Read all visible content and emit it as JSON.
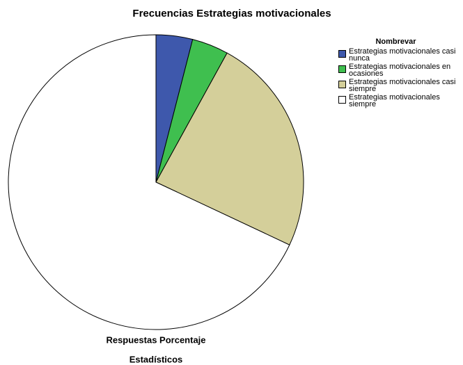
{
  "chart_data": {
    "type": "pie",
    "title": "Frecuencias Estrategias motivacionales",
    "legend_title": "Nombrevar",
    "categories": [
      "Estrategias motivacionales casi nunca",
      "Estrategias motivacionales en ocasiones",
      "Estrategias motivacionales casi siempre",
      "Estrategias motivacionales siempre"
    ],
    "values": [
      4,
      4,
      24,
      68
    ],
    "colors": [
      "#3e58ac",
      "#3fbf4f",
      "#d4cf9a",
      "#ffffff"
    ],
    "xlabel": "Respuestas Porcentaje",
    "caption": "Estadísticos",
    "legend": "right"
  }
}
